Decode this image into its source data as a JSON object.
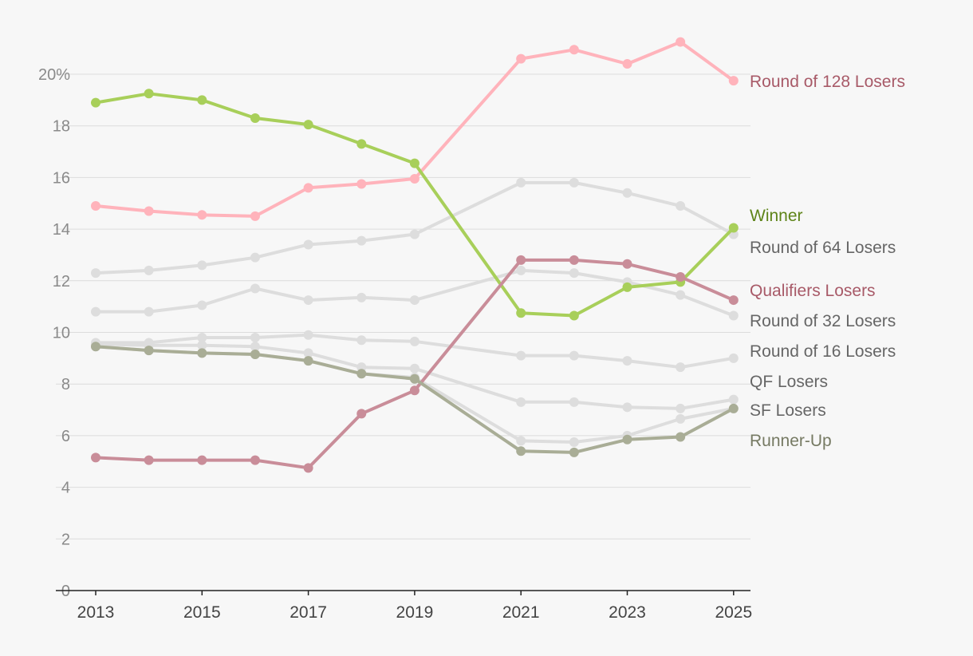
{
  "chart_data": {
    "type": "line",
    "title": "",
    "xlabel": "",
    "ylabel": "",
    "x": [
      2013,
      2014,
      2015,
      2016,
      2017,
      2018,
      2019,
      2021,
      2022,
      2023,
      2024,
      2025
    ],
    "x_tick_labels": [
      "2013",
      "2015",
      "2017",
      "2019",
      "2021",
      "2023",
      "2025"
    ],
    "y_tick_labels": [
      "0",
      "2",
      "4",
      "6",
      "8",
      "10",
      "12",
      "14",
      "16",
      "18",
      "20%"
    ],
    "ylim": [
      0,
      21.5
    ],
    "grid": true,
    "series": [
      {
        "name": "Round of 64 Losers",
        "color": "#dddddd",
        "label_color": "#666666",
        "values": [
          12.3,
          12.4,
          12.6,
          12.9,
          13.4,
          13.55,
          13.8,
          15.8,
          15.8,
          15.4,
          14.9,
          13.8
        ]
      },
      {
        "name": "Round of 32 Losers",
        "color": "#dddddd",
        "label_color": "#666666",
        "values": [
          10.8,
          10.8,
          11.05,
          11.7,
          11.25,
          11.35,
          11.25,
          12.4,
          12.3,
          11.95,
          11.45,
          10.65
        ]
      },
      {
        "name": "Round of 16 Losers",
        "color": "#dddddd",
        "label_color": "#666666",
        "values": [
          9.6,
          9.6,
          9.8,
          9.8,
          9.9,
          9.7,
          9.65,
          9.1,
          9.1,
          8.9,
          8.65,
          9.0
        ]
      },
      {
        "name": "QF Losers",
        "color": "#dddddd",
        "label_color": "#666666",
        "values": [
          9.55,
          9.5,
          9.5,
          9.45,
          9.2,
          8.65,
          8.6,
          7.3,
          7.3,
          7.1,
          7.05,
          7.4
        ]
      },
      {
        "name": "SF Losers",
        "color": "#dddddd",
        "label_color": "#666666",
        "values": [
          9.45,
          9.3,
          9.2,
          9.15,
          8.9,
          8.4,
          8.25,
          5.8,
          5.75,
          6.0,
          6.65,
          7.05
        ]
      },
      {
        "name": "Round of 128 Losers",
        "color": "#ffb3bb",
        "label_color": "#a85a68",
        "values": [
          14.9,
          14.7,
          14.55,
          14.5,
          15.6,
          15.75,
          15.95,
          20.6,
          20.95,
          20.4,
          21.25,
          19.75
        ]
      },
      {
        "name": "Winner",
        "color": "#a8cf5a",
        "label_color": "#5e8418",
        "values": [
          18.9,
          19.25,
          19.0,
          18.3,
          18.05,
          17.3,
          16.55,
          10.75,
          10.65,
          11.75,
          11.95,
          14.05
        ]
      },
      {
        "name": "Qualifiers Losers",
        "color": "#c98d99",
        "label_color": "#a85a68",
        "values": [
          5.15,
          5.05,
          5.05,
          5.05,
          4.75,
          6.85,
          7.75,
          12.8,
          12.8,
          12.65,
          12.15,
          11.25
        ]
      },
      {
        "name": "Runner-Up",
        "color": "#a9ad96",
        "label_color": "#767a63",
        "values": [
          9.45,
          9.3,
          9.2,
          9.15,
          8.9,
          8.4,
          8.2,
          5.4,
          5.35,
          5.85,
          5.95,
          7.05
        ]
      }
    ]
  }
}
